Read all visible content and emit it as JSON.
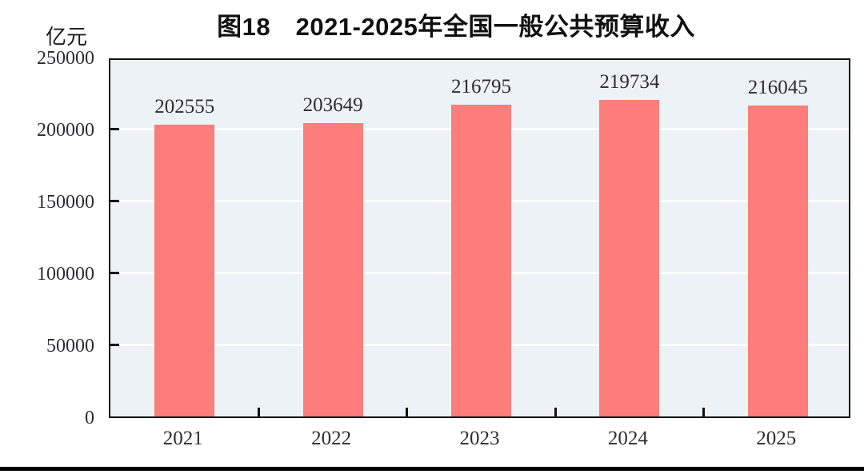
{
  "chart_data": {
    "type": "bar",
    "title": "图18　2021-2025年全国一般公共预算收入",
    "unit_label": "亿元",
    "categories": [
      "2021",
      "2022",
      "2023",
      "2024",
      "2025"
    ],
    "values": [
      202555,
      203649,
      216795,
      219734,
      216045
    ],
    "series": [
      {
        "name": "全国一般公共预算收入",
        "values": [
          202555,
          203649,
          216795,
          219734,
          216045
        ]
      }
    ],
    "xlabel": "",
    "ylabel": "亿元",
    "ylim": [
      0,
      250000
    ],
    "yticks": [
      0,
      50000,
      100000,
      150000,
      200000,
      250000
    ],
    "grid": "horizontal",
    "legend": "none",
    "data_labels_shown": true,
    "colors": {
      "bar": "#fc7d79",
      "plot_background": "#ecf2f6",
      "gridline": "#ffffff",
      "axis_border": "#121212",
      "number_text": "#2d2d31",
      "title_text": "#111111"
    }
  }
}
